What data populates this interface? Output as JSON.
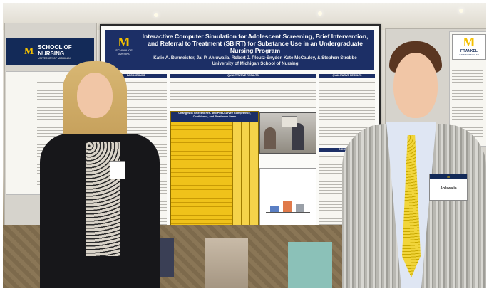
{
  "image": {
    "description_elements": "two presenters in front of a research poster"
  },
  "left_banner": {
    "logo": "M",
    "label": "SCHOOL OF NURSING",
    "sublabel": "UNIVERSITY OF MICHIGAN"
  },
  "right_banner": {
    "logo": "M",
    "label": "FRANKEL",
    "sublabel": "CARDIOVASCULAR"
  },
  "poster": {
    "logo": "M",
    "logo_sub": "SCHOOL OF NURSING",
    "title": "Interactive Computer Simulation for Adolescent Screening, Brief Intervention, and Referral to Treatment (SBIRT) for Substance Use in an Undergraduate Nursing Program",
    "authors": "Katie A. Burmeister, Jai P. Ahluwalia, Robert J. Ploutz-Snyder, Kate McCauley, & Stephen Strobbe",
    "institution": "University of Michigan School of Nursing",
    "section_headers": [
      "BACKGROUND",
      "QUANTITATIVE RESULTS",
      "QUALITATIVE RESULTS",
      "CONCLUSION"
    ],
    "table_title": "Changes in Selected Pre- and Post-Survey Competence, Confidence, and Readiness Items"
  },
  "badges": {
    "left": "",
    "right": "Ahluwalia"
  },
  "colors": {
    "poster_header": "#1c2f66",
    "table_fill": "#f0c21a",
    "michigan_maize": "#f4c000",
    "michigan_blue": "#132a58"
  }
}
